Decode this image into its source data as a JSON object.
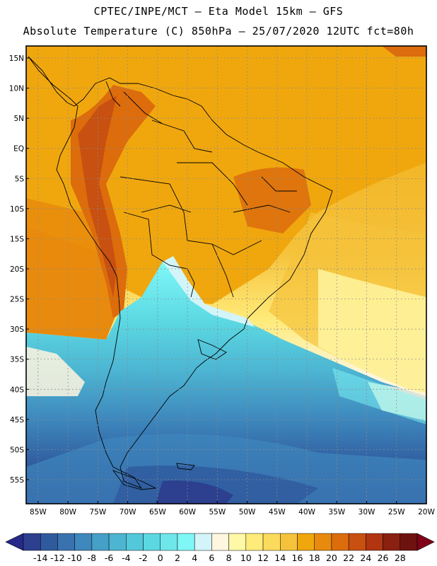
{
  "header": {
    "line1": "CPTEC/INPE/MCT —  Eta Model 15km — GFS",
    "line2": "Absolute Temperature (C) 850hPa — 25/07/2020 12UTC fct=80h"
  },
  "axes": {
    "lat_labels": [
      "15N",
      "10N",
      "5N",
      "EQ",
      "5S",
      "10S",
      "15S",
      "20S",
      "25S",
      "30S",
      "35S",
      "40S",
      "45S",
      "50S",
      "55S"
    ],
    "lat_values": [
      15,
      10,
      5,
      0,
      -5,
      -10,
      -15,
      -20,
      -25,
      -30,
      -35,
      -40,
      -45,
      -50,
      -55
    ],
    "lon_labels": [
      "85W",
      "80W",
      "75W",
      "70W",
      "65W",
      "60W",
      "55W",
      "50W",
      "45W",
      "40W",
      "35W",
      "30W",
      "25W",
      "20W"
    ],
    "lon_values": [
      -85,
      -80,
      -75,
      -70,
      -65,
      -60,
      -55,
      -50,
      -45,
      -40,
      -35,
      -30,
      -25,
      -20
    ]
  },
  "colorbar": {
    "labels": [
      "-14",
      "-12",
      "-10",
      "-8",
      "-6",
      "-4",
      "-2",
      "0",
      "2",
      "4",
      "6",
      "8",
      "10",
      "12",
      "14",
      "16",
      "18",
      "20",
      "22",
      "24",
      "26",
      "28"
    ],
    "colors": [
      "#2d3f8f",
      "#2f5a9e",
      "#3a72b0",
      "#3e88bd",
      "#45a0c8",
      "#4db5d2",
      "#53c8da",
      "#5bd8e2",
      "#6fe6ea",
      "#7ff7f7",
      "#d3f5f9",
      "#fff6df",
      "#fff8a6",
      "#ffeb7a",
      "#fbdb5c",
      "#f5c23b",
      "#f0a70e",
      "#e88a0d",
      "#dc6c0c",
      "#c85010",
      "#b03510",
      "#8a2010",
      "#6e1210"
    ],
    "over_color": "#800018",
    "under_color": "#26288a"
  }
}
